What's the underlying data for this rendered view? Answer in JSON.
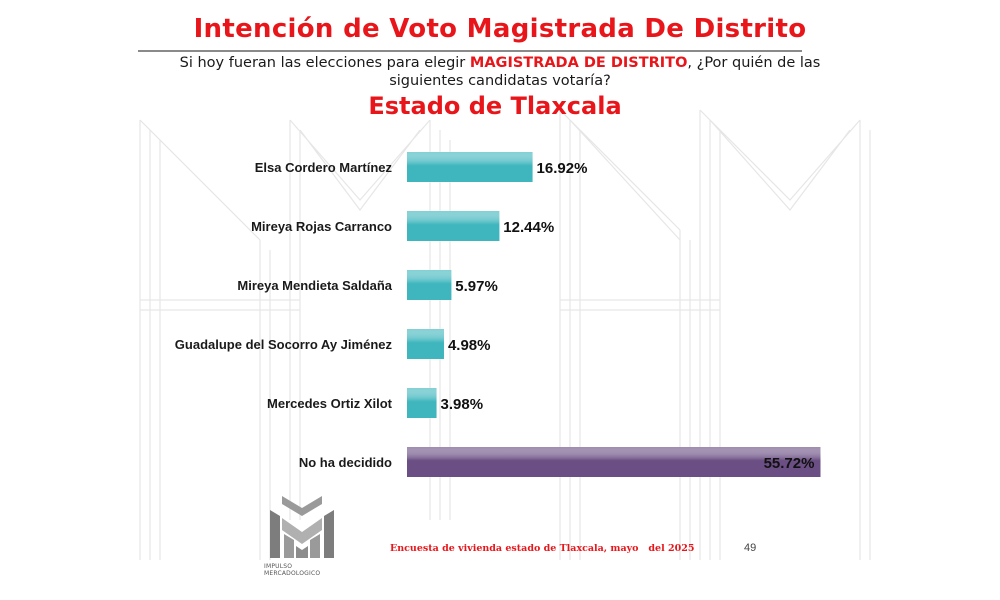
{
  "header": {
    "title": "Intención de Voto Magistrada De Distrito",
    "question_before": "Si hoy fueran las elecciones para elegir ",
    "question_highlight": "MAGISTRADA DE DISTRITO",
    "question_after": ", ¿Por quién de las siguientes candidatas votaría?",
    "subtitle": "Estado de Tlaxcala"
  },
  "chart_data": {
    "type": "bar",
    "orientation": "horizontal",
    "title": "Intención de Voto Magistrada De Distrito",
    "subtitle": "Estado de Tlaxcala",
    "categories": [
      "Elsa Cordero Martínez",
      "Mireya Rojas Carranco",
      "Mireya Mendieta Saldaña",
      "Guadalupe del Socorro Ay Jiménez",
      "Mercedes Ortiz Xilot",
      "No ha decidido"
    ],
    "values": [
      16.92,
      12.44,
      5.97,
      4.98,
      3.98,
      55.72
    ],
    "value_labels": [
      "16.92%",
      "12.44%",
      "5.97%",
      "4.98%",
      "3.98%",
      "55.72%"
    ],
    "bar_colors": [
      "#3fb6bd",
      "#3fb6bd",
      "#3fb6bd",
      "#3fb6bd",
      "#3fb6bd",
      "#6b4f84"
    ],
    "xlim": [
      0,
      58
    ],
    "grid": false,
    "legend": "none"
  },
  "footer": {
    "source": "Encuesta de vivienda estado de Tlaxcala, mayo   del 2025",
    "page_number": "49",
    "logo_line1": "IMPULSO",
    "logo_line2": "MERCADOLOGICO"
  },
  "colors": {
    "accent_red": "#e8161a",
    "teal": "#3fb6bd",
    "purple": "#6b4f84"
  }
}
